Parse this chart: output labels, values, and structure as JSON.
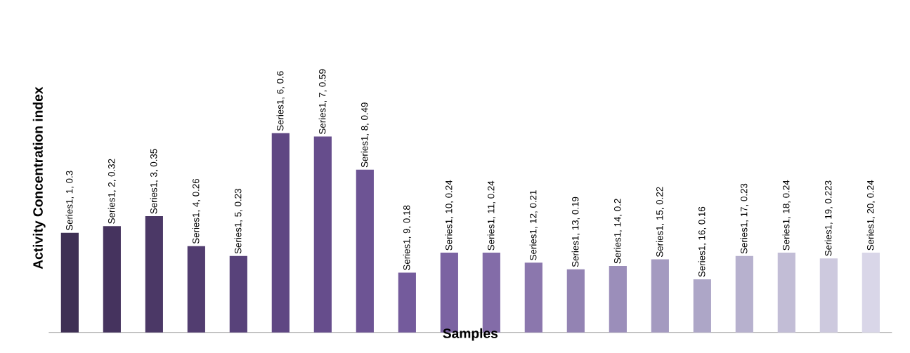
{
  "chart_data": {
    "type": "bar",
    "xlabel": "Samples",
    "ylabel": "Activity Concentration index",
    "categories": [
      null,
      null,
      null,
      null,
      null,
      null,
      null,
      null,
      null,
      null,
      null,
      null,
      null,
      null,
      null,
      null,
      null,
      null,
      null,
      null
    ],
    "values": [
      0.3,
      0.32,
      0.35,
      0.26,
      0.23,
      0.6,
      0.59,
      0.49,
      0.18,
      0.24,
      0.24,
      0.21,
      0.19,
      0.2,
      0.22,
      0.16,
      0.23,
      0.24,
      0.223,
      0.24
    ],
    "value_labels": [
      "Series1, 1, 0.3",
      "Series1, 2, 0.32",
      "Series1, 3, 0.35",
      "Series1, 4, 0.26",
      "Series1, 5, 0.23",
      "Series1, 6, 0.6",
      "Series1, 7, 0.59",
      "Series1, 8, 0.49",
      "Series1, 9, 0.18",
      "Series1, 10, 0.24",
      "Series1, 11, 0.24",
      "Series1, 12, 0.21",
      "Series1, 13, 0.19",
      "Series1, 14, 0.2",
      "Series1, 15, 0.22",
      "Series1, 16, 0.16",
      "Series1, 17, 0.23",
      "Series1, 18, 0.24",
      "Series1, 19, 0.223",
      "Series1, 20, 0.24"
    ],
    "colors": [
      "#3e2f54",
      "#45335e",
      "#4b3866",
      "#523d70",
      "#58427a",
      "#5f4783",
      "#664d8c",
      "#6d5494",
      "#745b9c",
      "#7b63a2",
      "#836ca8",
      "#8b77ad",
      "#9383b3",
      "#9b8eba",
      "#a49ac0",
      "#ada6c7",
      "#b7b1ce",
      "#c2bdd6",
      "#cdc9de",
      "#d9d6e8"
    ],
    "tick_labels": false
  }
}
